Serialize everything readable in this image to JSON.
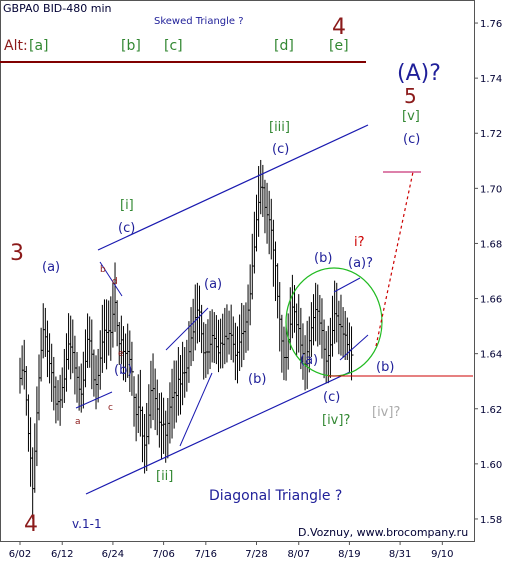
{
  "chart_data": {
    "type": "bar",
    "title": "GBPA0 BID-480 min",
    "subtitle": "Skewed Triangle ?",
    "credit": "D.Voznuy,  www.brocompany.ru",
    "y_ticks": [
      "1.76",
      "1.74",
      "1.72",
      "1.70",
      "1.68",
      "1.66",
      "1.64",
      "1.62",
      "1.60",
      "1.58"
    ],
    "ylim": [
      1.572,
      1.768
    ],
    "x_ticks": [
      "6/02",
      "6/12",
      "6/24",
      "7/06",
      "7/16",
      "7/28",
      "8/07",
      "8/19",
      "8/31",
      "9/10"
    ],
    "x_days": [
      0,
      10,
      22,
      34,
      44,
      56,
      66,
      78,
      90,
      100
    ],
    "xlim": [
      -4.5,
      107.5
    ],
    "series": [
      {
        "values": [
          [
            0.0,
            1.6255,
            1.6385,
            1.631
          ],
          [
            0.5,
            1.6285,
            1.643,
            1.634
          ],
          [
            1.0,
            1.627,
            1.645,
            1.6335
          ],
          [
            1.5,
            1.6175,
            1.6355,
            1.6232
          ],
          [
            2.0,
            1.6044,
            1.6252,
            1.611
          ],
          [
            2.5,
            1.5917,
            1.6169,
            1.6021
          ],
          [
            3.0,
            1.58,
            1.606,
            1.591
          ],
          [
            3.5,
            1.5895,
            1.6147,
            1.6046
          ],
          [
            4.0,
            1.5992,
            1.6281,
            1.6185
          ],
          [
            4.5,
            1.6158,
            1.6397,
            1.6312
          ],
          [
            5.0,
            1.6299,
            1.6494,
            1.6412
          ],
          [
            5.5,
            1.6383,
            1.6583,
            1.6487
          ],
          [
            6.0,
            1.6388,
            1.6566,
            1.6461
          ],
          [
            6.5,
            1.6315,
            1.652,
            1.6409
          ],
          [
            7.0,
            1.6292,
            1.6474,
            1.6364
          ],
          [
            7.5,
            1.6225,
            1.6436,
            1.6331
          ],
          [
            8.0,
            1.6194,
            1.6388,
            1.6279
          ],
          [
            8.5,
            1.6147,
            1.6317,
            1.6217
          ],
          [
            9.0,
            1.6157,
            1.6304,
            1.6226
          ],
          [
            9.5,
            1.6138,
            1.6323,
            1.6232
          ],
          [
            10.0,
            1.6203,
            1.635,
            1.6277
          ],
          [
            10.5,
            1.6221,
            1.6417,
            1.6308
          ],
          [
            11.0,
            1.6262,
            1.6474,
            1.6379
          ],
          [
            11.5,
            1.6342,
            1.6547,
            1.6435
          ],
          [
            12.0,
            1.6307,
            1.6538,
            1.6424
          ],
          [
            12.5,
            1.6329,
            1.6524,
            1.6404
          ],
          [
            13.0,
            1.6252,
            1.6465,
            1.6348
          ],
          [
            13.5,
            1.6222,
            1.6406,
            1.6314
          ],
          [
            14.0,
            1.6193,
            1.6354,
            1.6271
          ],
          [
            14.5,
            1.6186,
            1.6364,
            1.6253
          ],
          [
            15.0,
            1.6201,
            1.6407,
            1.6304
          ],
          [
            15.5,
            1.6278,
            1.6488,
            1.6372
          ],
          [
            16.0,
            1.6348,
            1.6546,
            1.6452
          ],
          [
            16.5,
            1.6349,
            1.6535,
            1.6446
          ],
          [
            17.0,
            1.6271,
            1.6524,
            1.6398
          ],
          [
            17.5,
            1.6244,
            1.6415,
            1.6305
          ],
          [
            18.0,
            1.6198,
            1.6394,
            1.6288
          ],
          [
            18.5,
            1.6223,
            1.6417,
            1.6321
          ],
          [
            19.0,
            1.6269,
            1.6485,
            1.6384
          ],
          [
            19.5,
            1.633,
            1.6577,
            1.6442
          ],
          [
            20.0,
            1.6366,
            1.6597,
            1.6485
          ],
          [
            20.5,
            1.6343,
            1.6597,
            1.6477
          ],
          [
            21.0,
            1.6393,
            1.6593,
            1.6483
          ],
          [
            21.5,
            1.6374,
            1.6608,
            1.6477
          ],
          [
            22.0,
            1.6422,
            1.6659,
            1.6543
          ],
          [
            22.5,
            1.6479,
            1.6731,
            1.6586
          ],
          [
            23.0,
            1.6427,
            1.6594,
            1.6502
          ],
          [
            23.5,
            1.6359,
            1.6515,
            1.6436
          ],
          [
            24.0,
            1.6362,
            1.6538,
            1.645
          ],
          [
            24.5,
            1.6303,
            1.65,
            1.6408
          ],
          [
            25.0,
            1.6297,
            1.6473,
            1.6401
          ],
          [
            25.5,
            1.6312,
            1.6509,
            1.6408
          ],
          [
            26.0,
            1.6261,
            1.6484,
            1.6379
          ],
          [
            26.5,
            1.6247,
            1.6443,
            1.6334
          ],
          [
            27.0,
            1.6135,
            1.6318,
            1.6241
          ],
          [
            27.5,
            1.6082,
            1.6255,
            1.6179
          ],
          [
            28.0,
            1.6112,
            1.6325,
            1.6206
          ],
          [
            28.5,
            1.6099,
            1.6341,
            1.6194
          ],
          [
            29.0,
            1.6006,
            1.6208,
            1.6101
          ],
          [
            29.5,
            1.5965,
            1.6181,
            1.6068
          ],
          [
            30.0,
            1.5974,
            1.6221,
            1.6099
          ],
          [
            30.5,
            1.6071,
            1.6289,
            1.6177
          ],
          [
            31.0,
            1.6129,
            1.6374,
            1.6266
          ],
          [
            31.5,
            1.6159,
            1.6401,
            1.6273
          ],
          [
            32.0,
            1.6123,
            1.6346,
            1.6237
          ],
          [
            32.5,
            1.6104,
            1.6306,
            1.6199
          ],
          [
            33.0,
            1.6059,
            1.6257,
            1.6151
          ],
          [
            33.5,
            1.6016,
            1.6259,
            1.6141
          ],
          [
            34.0,
            1.6036,
            1.624,
            1.6144
          ],
          [
            34.5,
            1.6004,
            1.6193,
            1.6104
          ],
          [
            35.0,
            1.602,
            1.6239,
            1.6147
          ],
          [
            35.5,
            1.6074,
            1.6296,
            1.6206
          ],
          [
            36.0,
            1.6092,
            1.6345,
            1.6241
          ],
          [
            36.5,
            1.6128,
            1.6375,
            1.6258
          ],
          [
            37.0,
            1.615,
            1.6375,
            1.6248
          ],
          [
            37.5,
            1.6175,
            1.6424,
            1.6307
          ],
          [
            38.0,
            1.6179,
            1.6395,
            1.629
          ],
          [
            38.5,
            1.6213,
            1.6443,
            1.633
          ],
          [
            39.0,
            1.624,
            1.6424,
            1.6331
          ],
          [
            39.5,
            1.6262,
            1.645,
            1.6348
          ],
          [
            40.0,
            1.6294,
            1.6518,
            1.6407
          ],
          [
            40.5,
            1.6355,
            1.6569,
            1.6457
          ],
          [
            41.0,
            1.6373,
            1.6599,
            1.6479
          ],
          [
            41.5,
            1.6412,
            1.6651,
            1.6531
          ],
          [
            42.0,
            1.6437,
            1.6657,
            1.6558
          ],
          [
            42.5,
            1.6442,
            1.6647,
            1.6551
          ],
          [
            43.0,
            1.6402,
            1.6577,
            1.6472
          ],
          [
            43.5,
            1.6306,
            1.6514,
            1.6403
          ],
          [
            44.0,
            1.6312,
            1.6508,
            1.6406
          ],
          [
            44.5,
            1.6325,
            1.6525,
            1.6406
          ],
          [
            45.0,
            1.6344,
            1.6555,
            1.6434
          ],
          [
            45.5,
            1.6368,
            1.6561,
            1.6466
          ],
          [
            46.0,
            1.6366,
            1.6551,
            1.6455
          ],
          [
            46.5,
            1.6362,
            1.654,
            1.6425
          ],
          [
            47.0,
            1.6333,
            1.6523,
            1.6403
          ],
          [
            47.5,
            1.6346,
            1.6527,
            1.6438
          ],
          [
            48.0,
            1.6347,
            1.6545,
            1.6434
          ],
          [
            48.5,
            1.6362,
            1.6566,
            1.6463
          ],
          [
            49.0,
            1.6368,
            1.6579,
            1.6454
          ],
          [
            49.5,
            1.6397,
            1.6556,
            1.6473
          ],
          [
            50.0,
            1.6377,
            1.6578,
            1.6467
          ],
          [
            50.5,
            1.6368,
            1.6535,
            1.6434
          ],
          [
            51.0,
            1.6304,
            1.6512,
            1.6394
          ],
          [
            51.5,
            1.6292,
            1.6499,
            1.6405
          ],
          [
            52.0,
            1.6337,
            1.6542,
            1.6442
          ],
          [
            52.5,
            1.6351,
            1.6584,
            1.6473
          ],
          [
            53.0,
            1.6377,
            1.6576,
            1.648
          ],
          [
            53.5,
            1.6403,
            1.6586,
            1.6515
          ],
          [
            54.0,
            1.6411,
            1.6651,
            1.6558
          ],
          [
            54.5,
            1.6503,
            1.6724,
            1.6617
          ],
          [
            55.0,
            1.6597,
            1.6835,
            1.6718
          ],
          [
            55.5,
            1.6691,
            1.6915,
            1.6787
          ],
          [
            56.0,
            1.6771,
            1.6977,
            1.6886
          ],
          [
            56.5,
            1.6824,
            1.7081,
            1.6949
          ],
          [
            57.0,
            1.6906,
            1.7103,
            1.7004
          ],
          [
            57.5,
            1.6896,
            1.7085,
            1.7002
          ],
          [
            58.0,
            1.6837,
            1.7031,
            1.6931
          ],
          [
            58.5,
            1.6799,
            1.702,
            1.6904
          ],
          [
            59.0,
            1.6761,
            1.6991,
            1.6886
          ],
          [
            59.5,
            1.6742,
            1.6962,
            1.6848
          ],
          [
            60.0,
            1.6643,
            1.6886,
            1.6776
          ],
          [
            60.5,
            1.6591,
            1.6807,
            1.6719
          ],
          [
            61.0,
            1.6528,
            1.6728,
            1.6608
          ],
          [
            61.5,
            1.6408,
            1.666,
            1.6525
          ],
          [
            62.0,
            1.6331,
            1.6541,
            1.6446
          ],
          [
            62.5,
            1.6304,
            1.6498,
            1.6386
          ],
          [
            63.0,
            1.6302,
            1.652,
            1.6386
          ],
          [
            63.5,
            1.6342,
            1.6546,
            1.6451
          ],
          [
            64.0,
            1.6413,
            1.6641,
            1.6507
          ],
          [
            64.5,
            1.6456,
            1.6686,
            1.6569
          ],
          [
            65.0,
            1.6476,
            1.6649,
            1.6552
          ],
          [
            65.5,
            1.6394,
            1.6582,
            1.6505
          ],
          [
            66.0,
            1.6404,
            1.6616,
            1.6491
          ],
          [
            66.5,
            1.6344,
            1.6566,
            1.6431
          ],
          [
            67.0,
            1.6305,
            1.651,
            1.64
          ],
          [
            67.5,
            1.6267,
            1.6467,
            1.6362
          ],
          [
            68.0,
            1.6272,
            1.6519,
            1.6407
          ],
          [
            68.5,
            1.6332,
            1.6535,
            1.6447
          ],
          [
            69.0,
            1.6388,
            1.6587,
            1.6494
          ],
          [
            69.5,
            1.643,
            1.6616,
            1.6531
          ],
          [
            70.0,
            1.6445,
            1.6657,
            1.656
          ],
          [
            70.5,
            1.6426,
            1.6651,
            1.6554
          ],
          [
            71.0,
            1.6432,
            1.6613,
            1.6511
          ],
          [
            71.5,
            1.6382,
            1.6601,
            1.6484
          ],
          [
            72.0,
            1.6311,
            1.6524,
            1.6416
          ],
          [
            72.5,
            1.6292,
            1.6482,
            1.6373
          ],
          [
            73.0,
            1.6293,
            1.6501,
            1.6393
          ],
          [
            73.5,
            1.6312,
            1.653,
            1.6432
          ],
          [
            74.0,
            1.6389,
            1.661,
            1.6484
          ],
          [
            74.5,
            1.6436,
            1.6665,
            1.6545
          ],
          [
            75.0,
            1.6441,
            1.6657,
            1.6537
          ],
          [
            75.5,
            1.6398,
            1.6592,
            1.6506
          ],
          [
            76.0,
            1.6393,
            1.6614,
            1.6498
          ],
          [
            76.5,
            1.6385,
            1.6569,
            1.6471
          ],
          [
            77.0,
            1.6377,
            1.6555,
            1.6467
          ],
          [
            77.5,
            1.6377,
            1.6531,
            1.6433
          ],
          [
            78.0,
            1.633,
            1.6513,
            1.6413
          ],
          [
            78.5,
            1.6303,
            1.6499,
            1.6395
          ]
        ]
      }
    ],
    "annotations": {
      "alt": "Alt:",
      "alt_a": "[a]",
      "alt_b": "[b]",
      "alt_c": "[c]",
      "alt_d": "[d]",
      "alt_e": "[e]",
      "big_4_top": "4",
      "big_3": "3",
      "big_4_bottom": "4",
      "big_5": "5",
      "big_A": "(A)?",
      "v_label": "[v]",
      "c_top_right": "(c)",
      "i_label": "[i]",
      "c_i": "(c)",
      "a_left": "(a)",
      "b_left": "(b)",
      "small_a_left": "a",
      "small_b_left": "b",
      "small_c_left": "c",
      "small_d_left": "d",
      "small_e_left": "e",
      "ii_label": "[ii]",
      "a_mid": "(a)",
      "b_mid": "(b)",
      "iii_label": "[iii]",
      "c_iii": "(c)",
      "b_tri": "(b)",
      "a_tri": "(a)",
      "c_tri": "(c)",
      "iv_label": "[iv]?",
      "i_q": "i?",
      "a_q": "(a)?",
      "b_right": "(b)",
      "iv_grey": "[iv]?",
      "diagonal": "Diagonal Triangle ?",
      "v11": "v.1-1"
    },
    "colors": {
      "price_bars": "#000000",
      "trendlines": "#1a1ab0",
      "alt_line": "#800000",
      "circle": "#22bb22",
      "projection": "#cc0000",
      "target_mark": "#bb0055",
      "wave_green": "#338833",
      "wave_blue": "#1f1f99",
      "wave_red": "#8b1a1a",
      "wave_grey": "#aaaaaa"
    }
  }
}
